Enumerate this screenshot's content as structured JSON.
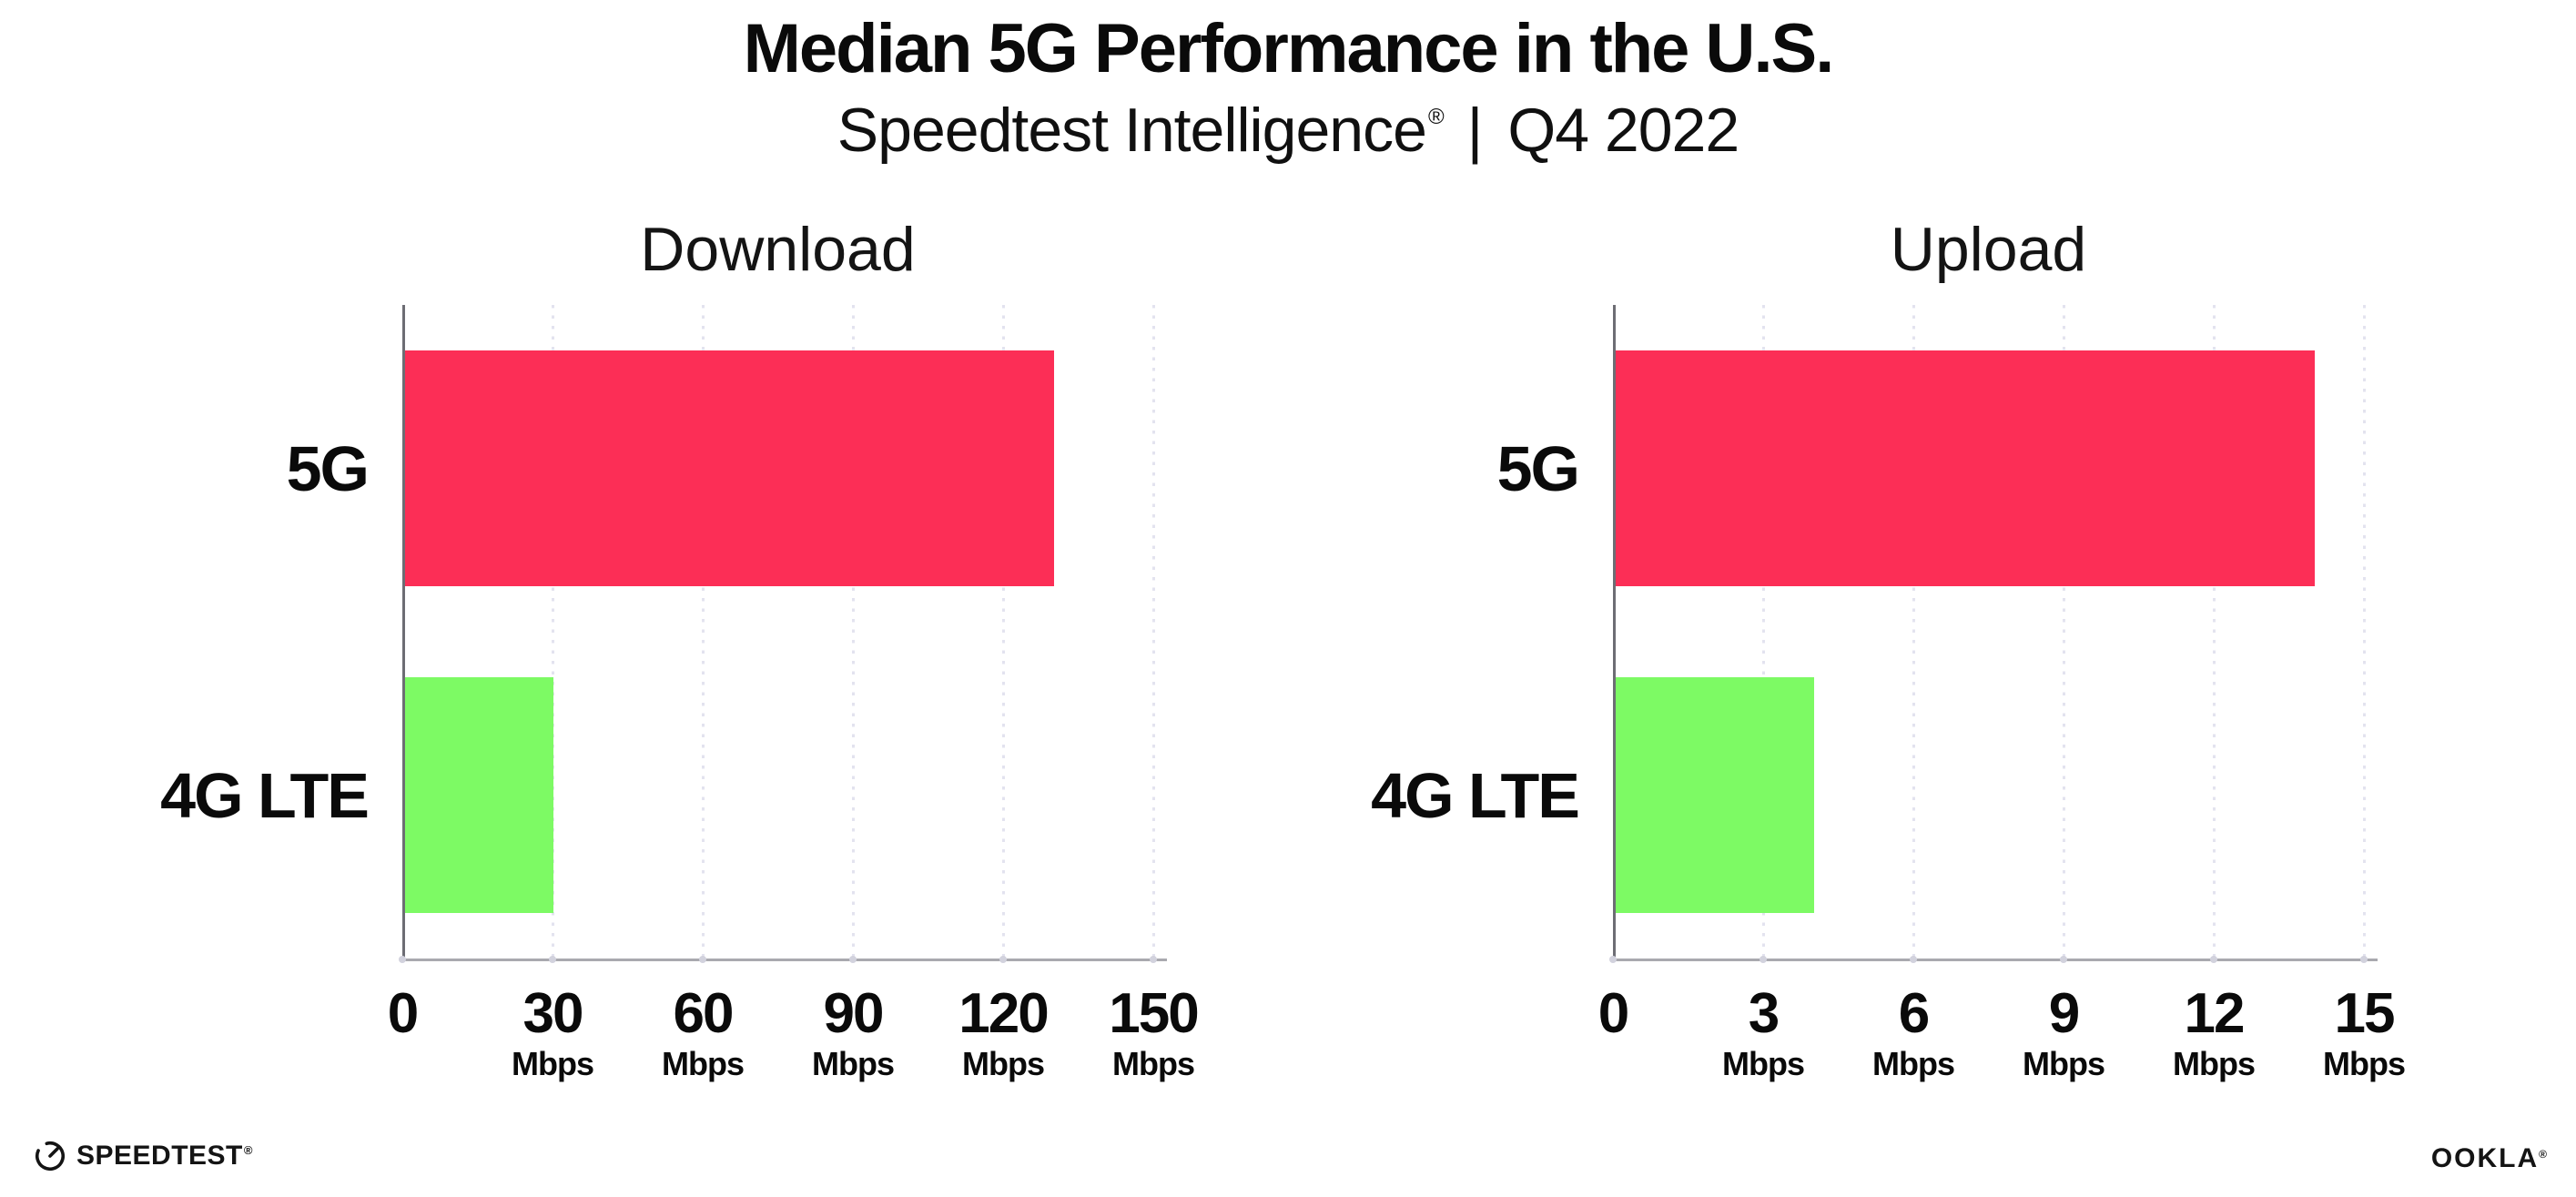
{
  "header": {
    "title": "Median 5G Performance in the U.S.",
    "subtitle": {
      "brand": "Speedtest Intelligence",
      "registered_mark": "®",
      "separator": "|",
      "period": "Q4 2022"
    }
  },
  "chart_data": [
    {
      "type": "bar",
      "orientation": "horizontal",
      "title": "Download",
      "categories": [
        "5G",
        "4G LTE"
      ],
      "values": [
        130,
        30
      ],
      "unit": "Mbps",
      "xlim": [
        0,
        150
      ],
      "xticks": [
        0,
        30,
        60,
        90,
        120,
        150
      ],
      "grid": "vertical-dotted",
      "legend": "none",
      "bar_colors": [
        "#FC2E56",
        "#7DFA64"
      ]
    },
    {
      "type": "bar",
      "orientation": "horizontal",
      "title": "Upload",
      "categories": [
        "5G",
        "4G LTE"
      ],
      "values": [
        14,
        4
      ],
      "unit": "Mbps",
      "xlim": [
        0,
        15
      ],
      "xticks": [
        0,
        3,
        6,
        9,
        12,
        15
      ],
      "grid": "vertical-dotted",
      "legend": "none",
      "bar_colors": [
        "#FC2E56",
        "#7DFA64"
      ]
    }
  ],
  "footer": {
    "speedtest": {
      "label": "SPEEDTEST",
      "mark": "®"
    },
    "ookla": {
      "label": "OOKLA",
      "mark": "®"
    }
  },
  "colors": {
    "bar_5g": "#FC2E56",
    "bar_4g_lte": "#7DFA64",
    "background": "#FFFFFF"
  }
}
